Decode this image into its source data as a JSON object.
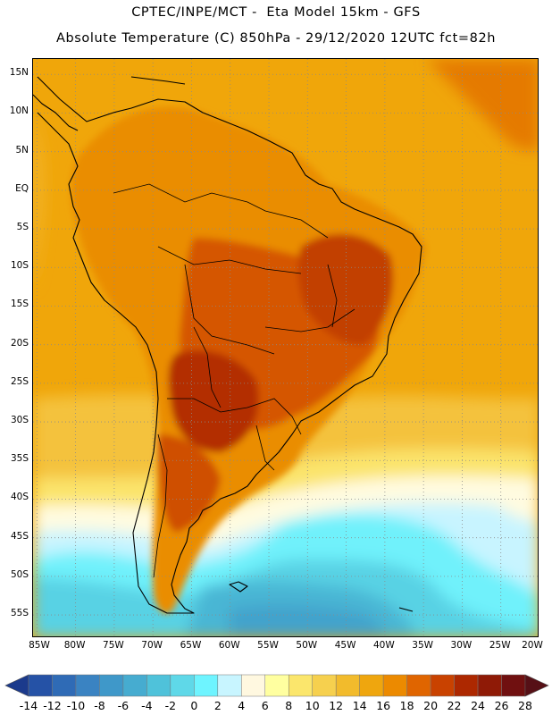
{
  "header": {
    "line1": "CPTEC/INPE/MCT -  Eta Model 15km - GFS",
    "line2": "Absolute Temperature (C) 850hPa - 29/12/2020 12UTC fct=82h"
  },
  "axes": {
    "lat_labels": [
      "15N",
      "10N",
      "5N",
      "EQ",
      "5S",
      "10S",
      "15S",
      "20S",
      "25S",
      "30S",
      "35S",
      "40S",
      "45S",
      "50S",
      "55S"
    ],
    "lat_values": [
      15,
      10,
      5,
      0,
      -5,
      -10,
      -15,
      -20,
      -25,
      -30,
      -35,
      -40,
      -45,
      -50,
      -55
    ],
    "lon_labels": [
      "85W",
      "80W",
      "75W",
      "70W",
      "65W",
      "60W",
      "55W",
      "50W",
      "45W",
      "40W",
      "35W",
      "30W",
      "25W",
      "20W"
    ],
    "lon_values": [
      -85,
      -80,
      -75,
      -70,
      -65,
      -60,
      -55,
      -50,
      -45,
      -40,
      -35,
      -30,
      -25,
      -20
    ],
    "lat_range": [
      -58,
      17
    ],
    "lon_range": [
      -85.5,
      -20.0
    ]
  },
  "colorbar": {
    "labels": [
      "-14",
      "-12",
      "-10",
      "-8",
      "-6",
      "-4",
      "-2",
      "0",
      "2",
      "4",
      "6",
      "8",
      "10",
      "12",
      "14",
      "16",
      "18",
      "20",
      "22",
      "24",
      "26",
      "28"
    ],
    "colors": [
      "#1b3a8c",
      "#2552a6",
      "#2f6bb6",
      "#3a83c2",
      "#3f98c9",
      "#46acd0",
      "#4fc2da",
      "#5fd8e8",
      "#6ef4ff",
      "#c8f5ff",
      "#fff8e0",
      "#ffffa0",
      "#fbe66c",
      "#f6d04e",
      "#f2bb2c",
      "#efa60e",
      "#ec8a00",
      "#e06500",
      "#c94200",
      "#ad2800",
      "#8f1a06",
      "#701010",
      "#561016"
    ],
    "unit": "C"
  },
  "map": {
    "field": "Absolute Temperature 850hPa",
    "landmarks": [
      "South America",
      "Falkland Islands"
    ]
  }
}
